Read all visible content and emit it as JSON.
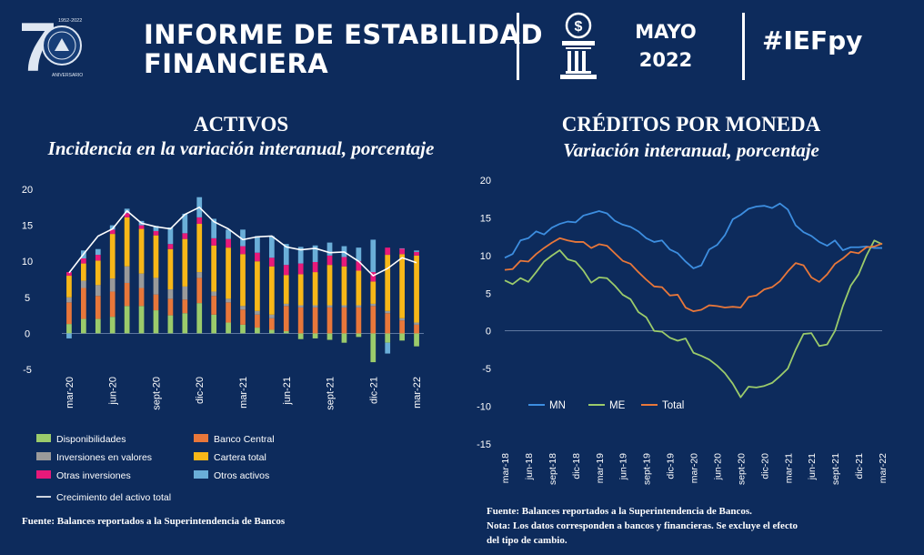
{
  "header": {
    "logo_number": "7",
    "logo_years": "1952-2022",
    "logo_caption": "ANIVERSARIO",
    "title_line1": "INFORME DE ESTABILIDAD",
    "title_line2": "FINANCIERA",
    "month": "MAYO",
    "year": "2022",
    "hashtag": "#IEFpy"
  },
  "left_panel": {
    "title": "ACTIVOS",
    "subtitle": "Incidencia en la variación interanual, porcentaje",
    "source": "Fuente: Balances reportados a la Superintendencia de Bancos"
  },
  "right_panel": {
    "title": "CRÉDITOS POR MONEDA",
    "subtitle": "Variación interanual, porcentaje",
    "source_lines": [
      "Fuente: Balances reportados a la Superintendencia de Bancos.",
      "Nota: Los datos corresponden a bancos y financieras. Se excluye el efecto",
      "del tipo de cambio."
    ]
  },
  "chart_data": [
    {
      "type": "bar",
      "stacked": true,
      "title": "ACTIVOS",
      "subtitle": "Incidencia en la variación interanual, porcentaje",
      "ylim": [
        -5,
        20
      ],
      "yticks": [
        -5,
        0,
        5,
        10,
        15,
        20
      ],
      "categories": [
        "mar-20",
        "abr-20",
        "may-20",
        "jun-20",
        "jul-20",
        "ago-20",
        "sept-20",
        "oct-20",
        "nov-20",
        "dic-20",
        "ene-21",
        "feb-21",
        "mar-21",
        "abr-21",
        "may-21",
        "jun-21",
        "jul-21",
        "ago-21",
        "sept-21",
        "oct-21",
        "nov-21",
        "dic-21",
        "ene-22",
        "feb-22",
        "mar-22"
      ],
      "tick_labels": [
        "mar-20",
        "jun-20",
        "sept-20",
        "dic-20",
        "mar-21",
        "jun-21",
        "sept-21",
        "dic-21",
        "mar-22"
      ],
      "series": [
        {
          "name": "Disponibilidades",
          "color": "#9bcb6b",
          "values": [
            1.3,
            2,
            2,
            2.3,
            3.8,
            3.8,
            3.2,
            2.5,
            2.8,
            4.2,
            2.6,
            1.5,
            1.2,
            0.8,
            0.5,
            0.3,
            -0.8,
            -0.7,
            -0.9,
            -1.3,
            -0.5,
            -4,
            -1.3,
            -1,
            -1.8
          ]
        },
        {
          "name": "Banco Central",
          "color": "#e8773a",
          "values": [
            3,
            4.3,
            3.2,
            3.5,
            3.2,
            2.5,
            2.2,
            2.3,
            1.9,
            3.5,
            2.6,
            2.8,
            2.1,
            1.8,
            1.6,
            3.5,
            3.6,
            3.6,
            3.6,
            3.6,
            3.6,
            3.8,
            2.8,
            1.8,
            1.2
          ]
        },
        {
          "name": "Inversiones en valores",
          "color": "#9a9a9a",
          "values": [
            0.7,
            1,
            1.5,
            1.8,
            2.3,
            2,
            2.3,
            1.3,
            1.8,
            0.8,
            0.6,
            0.5,
            0.5,
            0.5,
            0.5,
            0.3,
            0.3,
            0.3,
            0.3,
            0.3,
            0.3,
            0.3,
            0.3,
            0.3,
            0.3
          ]
        },
        {
          "name": "Cartera total",
          "color": "#f7b718",
          "values": [
            3,
            2.4,
            3.4,
            6.2,
            6.8,
            6.2,
            5.9,
            5.6,
            6.6,
            6.7,
            6.4,
            7.1,
            7.2,
            6.9,
            6.7,
            4,
            4.3,
            4.6,
            5.6,
            5.4,
            4.8,
            3.1,
            7.8,
            8.9,
            9.3
          ]
        },
        {
          "name": "Otras inversiones",
          "color": "#e8197a",
          "values": [
            0.5,
            0.7,
            0.8,
            0.6,
            0.6,
            0.5,
            0.6,
            0.7,
            0.8,
            0.9,
            1,
            1.2,
            1.1,
            1.2,
            1.2,
            1.4,
            1.5,
            1.4,
            1.3,
            1.3,
            1.3,
            1.3,
            1,
            0.8,
            0.5
          ]
        },
        {
          "name": "Otros activos",
          "color": "#6aaed8",
          "values": [
            -0.7,
            1.1,
            0.8,
            0.6,
            0.6,
            0.6,
            0.7,
            2.3,
            2.7,
            2.8,
            2.7,
            1.3,
            2.3,
            2.3,
            3,
            2.9,
            2.3,
            2.3,
            1.8,
            1.5,
            1.9,
            4.5,
            -1.5,
            0,
            0.2
          ]
        }
      ],
      "line": {
        "name": "Crecimiento del activo total",
        "color": "#ffffff",
        "values": [
          8.4,
          11,
          13.5,
          14.5,
          17,
          15.3,
          14.8,
          14.5,
          16.5,
          17.5,
          15.5,
          14.5,
          13,
          13.4,
          13.5,
          12,
          11.6,
          11.8,
          11.2,
          11.3,
          10,
          8,
          9,
          10.5,
          9.8
        ]
      }
    },
    {
      "type": "line",
      "title": "CRÉDITOS POR MONEDA",
      "subtitle": "Variación interanual, porcentaje",
      "ylim": [
        -15,
        20
      ],
      "yticks": [
        -15,
        -10,
        -5,
        0,
        5,
        10,
        15,
        20
      ],
      "x": [
        "mar-18",
        "abr-18",
        "may-18",
        "jun-18",
        "jul-18",
        "ago-18",
        "sept-18",
        "oct-18",
        "nov-18",
        "dic-18",
        "ene-19",
        "feb-19",
        "mar-19",
        "abr-19",
        "may-19",
        "jun-19",
        "jul-19",
        "ago-19",
        "sept-19",
        "oct-19",
        "nov-19",
        "dic-19",
        "ene-20",
        "feb-20",
        "mar-20",
        "abr-20",
        "may-20",
        "jun-20",
        "jul-20",
        "ago-20",
        "sept-20",
        "oct-20",
        "nov-20",
        "dic-20",
        "ene-21",
        "feb-21",
        "mar-21",
        "abr-21",
        "may-21",
        "jun-21",
        "jul-21",
        "ago-21",
        "sept-21",
        "oct-21",
        "nov-21",
        "dic-21",
        "ene-22",
        "feb-22",
        "mar-22"
      ],
      "tick_labels": [
        "mar-18",
        "jun-18",
        "sept-18",
        "dic-18",
        "mar-19",
        "jun-19",
        "sept-19",
        "dic-19",
        "mar-20",
        "jun-20",
        "sept-20",
        "dic-20",
        "mar-21",
        "jun-21",
        "sept-21",
        "dic-21",
        "mar-22"
      ],
      "series": [
        {
          "name": "MN",
          "color": "#3d8ee0",
          "values": [
            9.7,
            10.2,
            12,
            12.3,
            13.2,
            12.8,
            13.7,
            14.2,
            14.5,
            14.4,
            15.3,
            15.6,
            15.9,
            15.6,
            14.6,
            14.1,
            13.8,
            13.2,
            12.3,
            11.8,
            12,
            10.8,
            10.3,
            9.2,
            8.3,
            8.7,
            10.8,
            11.4,
            12.7,
            14.8,
            15.4,
            16.2,
            16.5,
            16.6,
            16.3,
            16.9,
            16.1,
            14,
            13.1,
            12.6,
            11.8,
            11.3,
            12,
            10.7,
            11.1,
            11.1,
            11.2,
            11,
            11
          ]
        },
        {
          "name": "ME",
          "color": "#9bcb6b",
          "values": [
            6.7,
            6.2,
            7,
            6.5,
            7.8,
            9.2,
            10,
            10.7,
            9.5,
            9.2,
            8,
            6.4,
            7.1,
            7,
            6,
            4.8,
            4.2,
            2.5,
            1.8,
            0,
            -0.1,
            -0.9,
            -1.3,
            -1,
            -2.9,
            -3.3,
            -3.8,
            -4.6,
            -5.6,
            -7,
            -8.8,
            -7.4,
            -7.5,
            -7.3,
            -6.9,
            -6,
            -5,
            -2.5,
            -0.4,
            -0.3,
            -2,
            -1.8,
            0,
            3.3,
            6,
            7.5,
            10,
            12,
            11.5
          ]
        },
        {
          "name": "Total",
          "color": "#e8773a",
          "values": [
            8.1,
            8.2,
            9.3,
            9.2,
            10.2,
            11,
            11.7,
            12.3,
            12,
            11.8,
            11.8,
            11,
            11.5,
            11.3,
            10.3,
            9.3,
            8.9,
            7.8,
            6.8,
            5.9,
            5.8,
            4.7,
            4.8,
            3.1,
            2.6,
            2.8,
            3.4,
            3.3,
            3.1,
            3.2,
            3.1,
            4.5,
            4.7,
            5.5,
            5.8,
            6.6,
            7.9,
            9,
            8.7,
            7.1,
            6.5,
            7.5,
            8.9,
            9.6,
            10.5,
            10.3,
            11.1,
            11.2,
            11.6
          ]
        }
      ],
      "legend_position": "bottom-left"
    }
  ]
}
